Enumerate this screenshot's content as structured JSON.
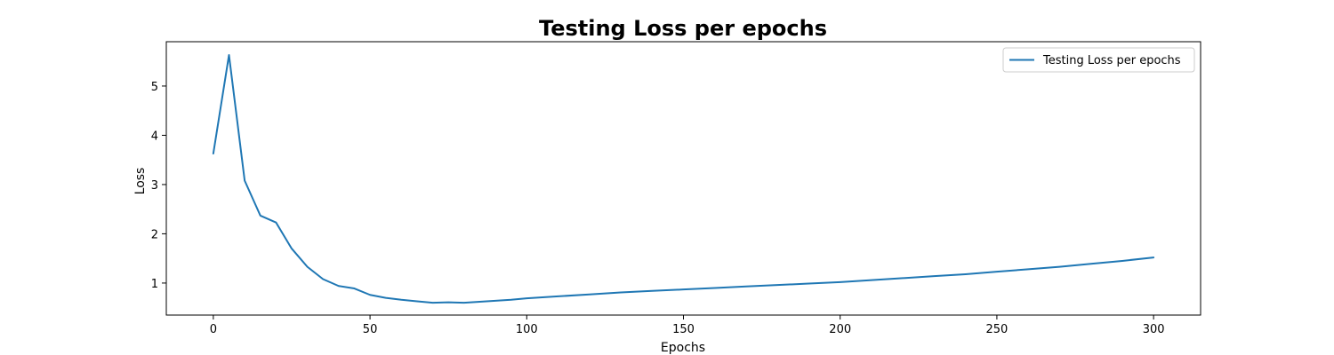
{
  "chart_data": {
    "type": "line",
    "title": "Testing Loss per epochs",
    "xlabel": "Epochs",
    "ylabel": "Loss",
    "xlim": [
      -15,
      315
    ],
    "ylim": [
      0.35,
      5.9
    ],
    "xticks": [
      0,
      50,
      100,
      150,
      200,
      250,
      300
    ],
    "yticks": [
      1,
      2,
      3,
      4,
      5
    ],
    "grid": false,
    "legend_position": "top-right",
    "series": [
      {
        "name": "Testing Loss per epochs",
        "color": "#1f77b4",
        "x": [
          0,
          5,
          10,
          15,
          20,
          25,
          30,
          35,
          40,
          45,
          50,
          55,
          60,
          65,
          70,
          75,
          80,
          85,
          90,
          95,
          100,
          110,
          120,
          130,
          140,
          150,
          160,
          170,
          180,
          190,
          200,
          210,
          220,
          230,
          240,
          250,
          260,
          270,
          280,
          290,
          300
        ],
        "y": [
          3.63,
          5.63,
          3.08,
          2.37,
          2.23,
          1.7,
          1.33,
          1.08,
          0.94,
          0.89,
          0.76,
          0.7,
          0.66,
          0.63,
          0.6,
          0.61,
          0.6,
          0.62,
          0.64,
          0.66,
          0.69,
          0.73,
          0.77,
          0.81,
          0.84,
          0.87,
          0.9,
          0.93,
          0.96,
          0.99,
          1.02,
          1.06,
          1.1,
          1.14,
          1.18,
          1.23,
          1.28,
          1.33,
          1.39,
          1.45,
          1.52
        ]
      }
    ]
  }
}
